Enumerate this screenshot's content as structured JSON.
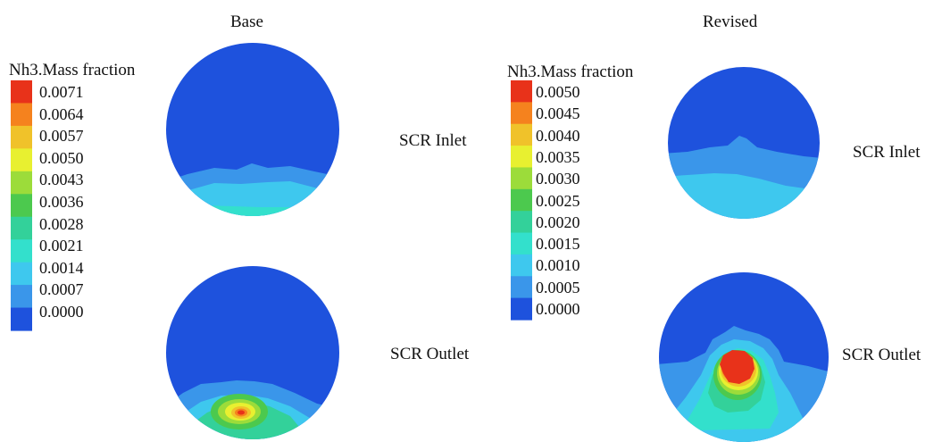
{
  "panels": [
    {
      "title": "Base",
      "legend": {
        "title": "Nh3.Mass fraction",
        "ticks": [
          "0.0071",
          "0.0064",
          "0.0057",
          "0.0050",
          "0.0043",
          "0.0036",
          "0.0028",
          "0.0021",
          "0.0014",
          "0.0007",
          "0.0000"
        ],
        "colors": [
          "#e8321a",
          "#f5821e",
          "#f0c22a",
          "#e8f030",
          "#9cdc3a",
          "#4cc94e",
          "#33d19a",
          "#33e0cc",
          "#3ec8ee",
          "#3a96ea",
          "#1e52dd"
        ]
      },
      "rows": [
        "SCR Inlet",
        "SCR Outlet"
      ]
    },
    {
      "title": "Revised",
      "legend": {
        "title": "Nh3.Mass fraction",
        "ticks": [
          "0.0050",
          "0.0045",
          "0.0040",
          "0.0035",
          "0.0030",
          "0.0025",
          "0.0020",
          "0.0015",
          "0.0010",
          "0.0005",
          "0.0000"
        ],
        "colors": [
          "#e8321a",
          "#f5821e",
          "#f0c22a",
          "#e8f030",
          "#9cdc3a",
          "#4cc94e",
          "#33d19a",
          "#33e0cc",
          "#3ec8ee",
          "#3a96ea",
          "#1e52dd"
        ]
      },
      "rows": [
        "SCR Inlet",
        "SCR Outlet"
      ]
    }
  ]
}
